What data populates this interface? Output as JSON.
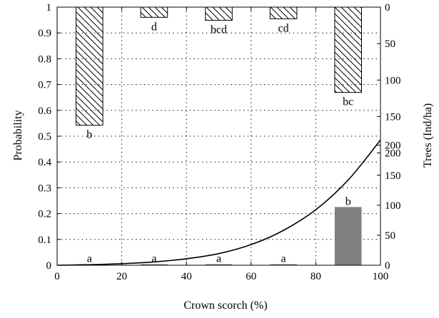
{
  "chart_data": {
    "type": "bar",
    "xlabel": "Crown scorch (%)",
    "ylabel_left": "Probability",
    "ylabel_right": "Trees (Ind/ha)",
    "xlim": [
      0,
      100
    ],
    "ylim": [
      0,
      1
    ],
    "x_ticks": [
      0,
      20,
      40,
      60,
      80,
      100
    ],
    "y_ticks": [
      0,
      0.1,
      0.2,
      0.3,
      0.4,
      0.5,
      0.6,
      0.7,
      0.8,
      0.9,
      1
    ],
    "right_axis_top": {
      "range_trees": [
        0,
        200
      ],
      "inverted": true,
      "ticks": [
        0,
        50,
        100,
        150,
        200
      ]
    },
    "right_axis_bottom": {
      "range_trees": [
        0,
        200
      ],
      "inverted": false,
      "ticks": [
        0,
        50,
        100,
        150,
        200
      ]
    },
    "grid": true,
    "series": [
      {
        "style": "hatched",
        "axis": "right_top",
        "x": [
          10,
          30,
          50,
          70,
          90
        ],
        "values": [
          162,
          14,
          18,
          16,
          117
        ],
        "labels": [
          "b",
          "d",
          "bcd",
          "cd",
          "bc"
        ]
      },
      {
        "style": "gray",
        "axis": "right_bottom",
        "x": [
          10,
          30,
          50,
          70,
          90
        ],
        "values": [
          1,
          0,
          1,
          1,
          97
        ],
        "labels": [
          "a",
          "a",
          "a",
          "a",
          "b"
        ]
      },
      {
        "style": "line",
        "axis": "left",
        "x": [
          0,
          10,
          20,
          30,
          40,
          50,
          60,
          70,
          80,
          90,
          100
        ],
        "values": [
          0.0,
          0.002,
          0.006,
          0.013,
          0.025,
          0.045,
          0.08,
          0.135,
          0.215,
          0.33,
          0.485
        ]
      }
    ]
  }
}
